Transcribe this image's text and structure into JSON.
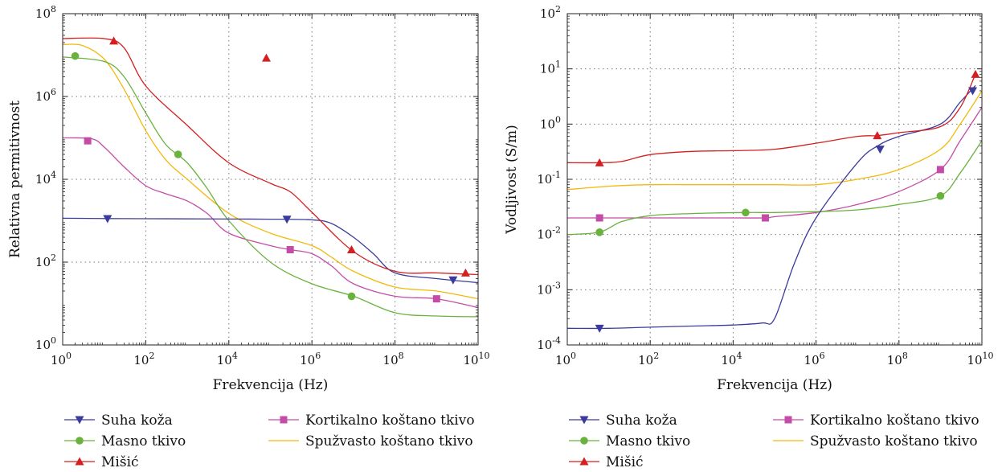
{
  "chart_data": [
    {
      "type": "line",
      "title": "",
      "xlabel": "Frekvencija (Hz)",
      "ylabel": "Relativna permitivnost",
      "xscale": "log",
      "yscale": "log",
      "xlim": [
        1,
        10000000000
      ],
      "ylim": [
        1,
        100000000
      ],
      "x_ticks": [
        {
          "e": 0,
          "label": "10",
          "exp": "0"
        },
        {
          "e": 2,
          "label": "10",
          "exp": "2"
        },
        {
          "e": 4,
          "label": "10",
          "exp": "4"
        },
        {
          "e": 6,
          "label": "10",
          "exp": "6"
        },
        {
          "e": 8,
          "label": "10",
          "exp": "8"
        },
        {
          "e": 10,
          "label": "10",
          "exp": "10"
        }
      ],
      "y_ticks": [
        {
          "e": 0,
          "label": "10",
          "exp": "0"
        },
        {
          "e": 2,
          "label": "10",
          "exp": "2"
        },
        {
          "e": 4,
          "label": "10",
          "exp": "4"
        },
        {
          "e": 6,
          "label": "10",
          "exp": "6"
        },
        {
          "e": 8,
          "label": "10",
          "exp": "8"
        }
      ],
      "grid": true,
      "series": [
        {
          "name": "Suha koža",
          "color": "#3b3b9e",
          "marker": "triangle-down",
          "x": [
            1,
            10,
            100,
            1000,
            10000,
            100000,
            1000000,
            3000000,
            10000000,
            30000000,
            100000000,
            1000000000,
            10000000000
          ],
          "y": [
            1150,
            1130,
            1120,
            1110,
            1100,
            1090,
            1050,
            850,
            400,
            160,
            55,
            40,
            32
          ],
          "markers_x": [
            12,
            250000,
            2500000000
          ],
          "markers_y": [
            1120,
            1080,
            37
          ]
        },
        {
          "name": "Masno tkivo",
          "color": "#6ab23e",
          "marker": "circle",
          "x": [
            1,
            10,
            30,
            100,
            300,
            1000,
            3000,
            10000,
            100000,
            1000000,
            10000000,
            100000000,
            1000000000,
            10000000000
          ],
          "y": [
            9000000,
            7000000,
            3000000,
            400000,
            70000,
            25000,
            6000,
            1000,
            100,
            30,
            15,
            6,
            5,
            4.8
          ],
          "markers_x": [
            2,
            600,
            9000000
          ],
          "markers_y": [
            9500000,
            40000,
            15
          ]
        },
        {
          "name": "Mišić",
          "color": "#d42020",
          "marker": "triangle-up",
          "x": [
            1,
            10,
            30,
            100,
            1000,
            10000,
            100000,
            300000,
            1000000,
            10000000,
            100000000,
            1000000000,
            10000000000
          ],
          "y": [
            25000000,
            25000000,
            15000000,
            1800000,
            200000,
            25000,
            8000,
            5000,
            1600,
            180,
            60,
            55,
            50
          ],
          "markers_x": [
            17,
            80000,
            9000000,
            5000000000
          ],
          "markers_y": [
            22000000,
            8500000,
            200,
            55
          ]
        },
        {
          "name": "Kortikalno koštano tkivo",
          "color": "#c44ca8",
          "marker": "square",
          "x": [
            1,
            5,
            10,
            30,
            100,
            300,
            1000,
            3000,
            10000,
            100000,
            300000,
            1000000,
            3000000,
            10000000,
            100000000,
            1000000000,
            10000000000
          ],
          "y": [
            100000,
            95000,
            60000,
            20000,
            7000,
            4500,
            3000,
            1500,
            500,
            250,
            200,
            160,
            80,
            30,
            15,
            13,
            8
          ],
          "markers_x": [
            4,
            300000,
            1000000000
          ],
          "markers_y": [
            85000,
            200,
            13
          ]
        },
        {
          "name": "Spužvasto koštano tkivo",
          "color": "#f2b90c",
          "marker": "none",
          "x": [
            1,
            3,
            10,
            30,
            100,
            300,
            1000,
            10000,
            100000,
            1000000,
            3000000,
            10000000,
            100000000,
            1000000000,
            10000000000
          ],
          "y": [
            18000000,
            17000000,
            8000000,
            1500000,
            150000,
            30000,
            10000,
            1500,
            500,
            250,
            130,
            60,
            25,
            20,
            13
          ],
          "markers_x": [],
          "markers_y": []
        }
      ]
    },
    {
      "type": "line",
      "title": "",
      "xlabel": "Frekvencija (Hz)",
      "ylabel": "Vodljivost (S/m)",
      "xscale": "log",
      "yscale": "log",
      "xlim": [
        1,
        10000000000
      ],
      "ylim": [
        0.0001,
        100
      ],
      "x_ticks": [
        {
          "e": 0,
          "label": "10",
          "exp": "0"
        },
        {
          "e": 2,
          "label": "10",
          "exp": "2"
        },
        {
          "e": 4,
          "label": "10",
          "exp": "4"
        },
        {
          "e": 6,
          "label": "10",
          "exp": "6"
        },
        {
          "e": 8,
          "label": "10",
          "exp": "8"
        },
        {
          "e": 10,
          "label": "10",
          "exp": "10"
        }
      ],
      "y_ticks": [
        {
          "e": -4,
          "label": "10",
          "exp": "-4"
        },
        {
          "e": -3,
          "label": "10",
          "exp": "-3"
        },
        {
          "e": -2,
          "label": "10",
          "exp": "-2"
        },
        {
          "e": -1,
          "label": "10",
          "exp": "-1"
        },
        {
          "e": 0,
          "label": "10",
          "exp": "0"
        },
        {
          "e": 1,
          "label": "10",
          "exp": "1"
        },
        {
          "e": 2,
          "label": "10",
          "exp": "2"
        }
      ],
      "grid": true,
      "series": [
        {
          "name": "Suha koža",
          "color": "#3b3b9e",
          "marker": "triangle-down",
          "x": [
            1,
            10,
            100,
            1000,
            10000,
            50000,
            100000,
            300000,
            1000000,
            10000000,
            30000000,
            100000000,
            1000000000,
            3000000000,
            7000000000
          ],
          "y": [
            0.0002,
            0.0002,
            0.00021,
            0.00022,
            0.00023,
            0.00025,
            0.0003,
            0.003,
            0.02,
            0.2,
            0.4,
            0.6,
            1,
            2.5,
            5
          ],
          "markers_x": [
            6,
            35000000,
            6000000000
          ],
          "markers_y": [
            0.0002,
            0.35,
            4
          ]
        },
        {
          "name": "Masno tkivo",
          "color": "#6ab23e",
          "marker": "circle",
          "x": [
            1,
            6,
            20,
            100,
            1000,
            20000,
            100000,
            1000000,
            10000000,
            100000000,
            1000000000,
            3000000000,
            10000000000
          ],
          "y": [
            0.01,
            0.011,
            0.017,
            0.022,
            0.024,
            0.025,
            0.025,
            0.026,
            0.028,
            0.035,
            0.05,
            0.13,
            0.5
          ],
          "markers_x": [
            6,
            20000,
            1000000000
          ],
          "markers_y": [
            0.011,
            0.025,
            0.05
          ]
        },
        {
          "name": "Mišić",
          "color": "#d42020",
          "marker": "triangle-up",
          "x": [
            1,
            6,
            20,
            100,
            1000,
            10000,
            100000,
            1000000,
            10000000,
            30000000,
            100000000,
            1000000000,
            3000000000,
            7000000000
          ],
          "y": [
            0.2,
            0.2,
            0.21,
            0.28,
            0.32,
            0.33,
            0.35,
            0.45,
            0.6,
            0.62,
            0.7,
            0.9,
            2,
            8
          ],
          "markers_x": [
            6,
            30000000,
            7000000000
          ],
          "markers_y": [
            0.2,
            0.62,
            8
          ]
        },
        {
          "name": "Kortikalno koštano tkivo",
          "color": "#c44ca8",
          "marker": "square",
          "x": [
            1,
            10,
            100,
            1000,
            10000,
            60000,
            100000,
            1000000,
            10000000,
            100000000,
            1000000000,
            3000000000,
            10000000000
          ],
          "y": [
            0.02,
            0.02,
            0.02,
            0.02,
            0.02,
            0.02,
            0.021,
            0.025,
            0.035,
            0.06,
            0.15,
            0.5,
            2
          ],
          "markers_x": [
            6,
            60000,
            1000000000
          ],
          "markers_y": [
            0.02,
            0.02,
            0.15
          ]
        },
        {
          "name": "Spužvasto koštano tkivo",
          "color": "#f2b90c",
          "marker": "none",
          "x": [
            1,
            10,
            100,
            1000,
            10000,
            100000,
            1000000,
            10000000,
            100000000,
            1000000000,
            3000000000,
            10000000000
          ],
          "y": [
            0.065,
            0.075,
            0.08,
            0.08,
            0.08,
            0.08,
            0.08,
            0.1,
            0.15,
            0.35,
            1,
            4
          ],
          "markers_x": [],
          "markers_y": []
        }
      ]
    }
  ]
}
